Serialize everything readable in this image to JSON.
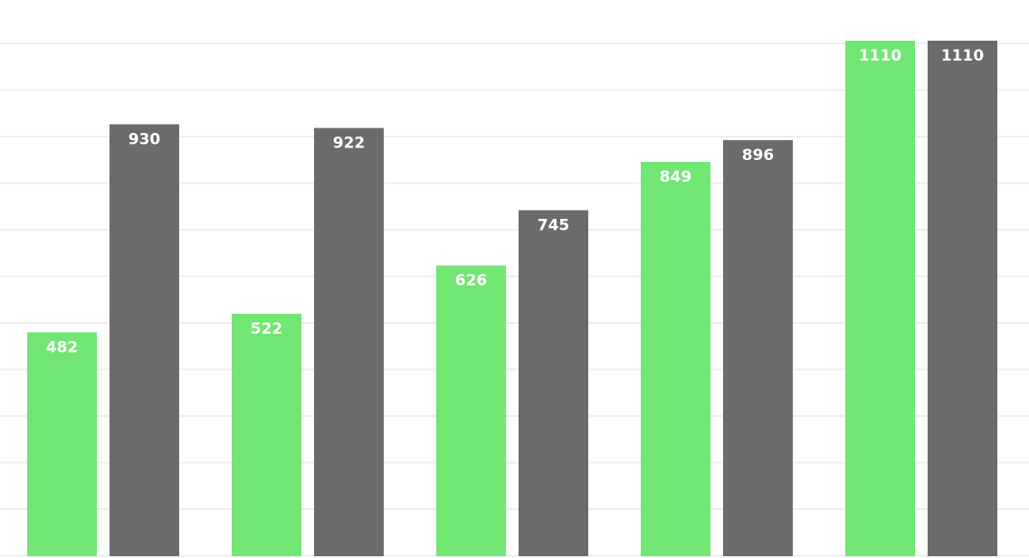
{
  "chart_data": {
    "type": "bar",
    "title": "",
    "xlabel": "",
    "ylabel": "",
    "categories": [
      "",
      "",
      "",
      "",
      ""
    ],
    "series": [
      {
        "color": "#72e672",
        "values": [
          482,
          522,
          626,
          849,
          1110
        ]
      },
      {
        "color": "#6b6b6b",
        "values": [
          930,
          922,
          745,
          896,
          1110
        ]
      }
    ],
    "ylim": [
      0,
      1110
    ],
    "grid": true,
    "legend": "none",
    "colors": {
      "background": "#ffffff",
      "grid": "#eeeeee"
    }
  }
}
